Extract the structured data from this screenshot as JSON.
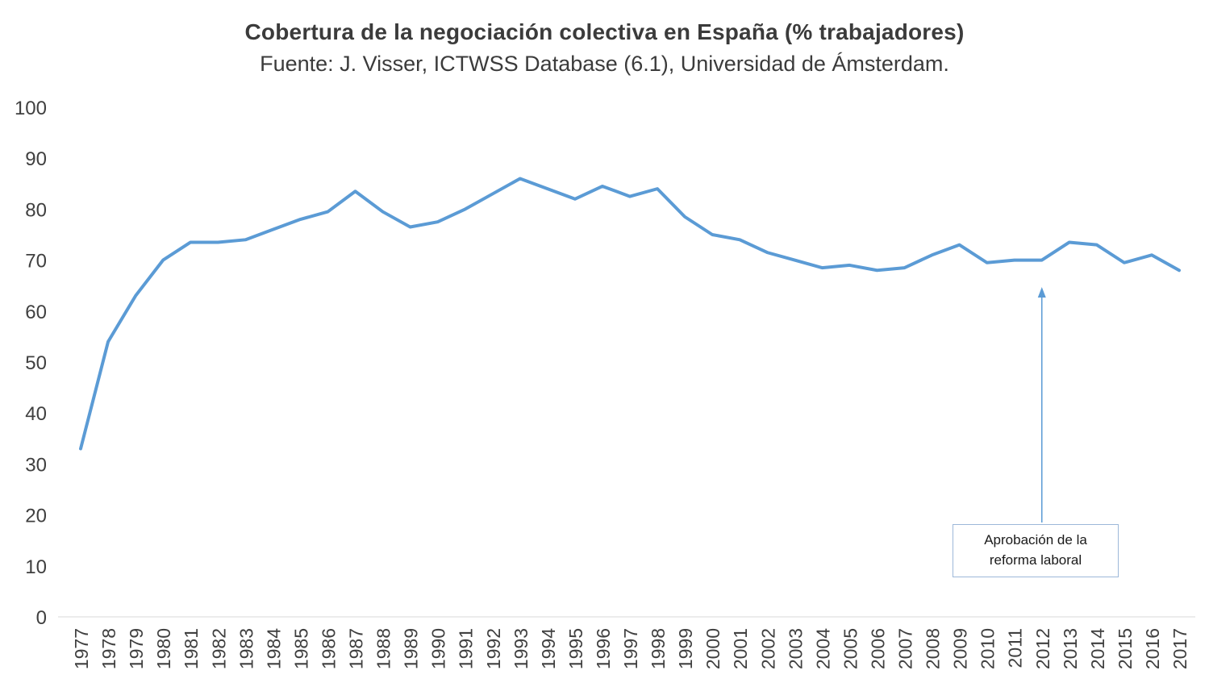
{
  "title": "Cobertura de la negociación colectiva en España (% trabajadores)",
  "subtitle": "Fuente: J. Visser, ICTWSS Database (6.1), Universidad de Ámsterdam.",
  "annotation": {
    "line1": "Aprobación de la",
    "line2": "reforma laboral",
    "year": 2012
  },
  "chart_data": {
    "type": "line",
    "title": "Cobertura de la negociación colectiva en España (% trabajadores)",
    "subtitle": "Fuente: J. Visser, ICTWSS Database (6.1), Universidad de Ámsterdam.",
    "x": [
      1977,
      1978,
      1979,
      1980,
      1981,
      1982,
      1983,
      1984,
      1985,
      1986,
      1987,
      1988,
      1989,
      1990,
      1991,
      1992,
      1993,
      1994,
      1995,
      1996,
      1997,
      1998,
      1999,
      2000,
      2001,
      2002,
      2003,
      2004,
      2005,
      2006,
      2007,
      2008,
      2009,
      2010,
      2011,
      2012,
      2013,
      2014,
      2015,
      2016,
      2017
    ],
    "values": [
      33,
      54,
      63,
      70,
      73.5,
      73.5,
      74,
      76,
      78,
      79.5,
      83.5,
      79.5,
      76.5,
      77.5,
      80,
      83,
      86,
      84,
      82,
      84.5,
      82.5,
      84,
      78.5,
      75,
      74,
      71.5,
      70,
      68.5,
      69,
      68,
      68.5,
      71,
      73,
      69.5,
      70,
      70,
      73.5,
      73,
      69.5,
      71,
      68
    ],
    "ylim": [
      0,
      100
    ],
    "yticks": [
      0,
      10,
      20,
      30,
      40,
      50,
      60,
      70,
      80,
      90,
      100
    ],
    "xlabel": "",
    "ylabel": "",
    "grid": false,
    "legend": "none",
    "line_color": "#5b9bd5",
    "label_color": "#404040",
    "axis_color": "#d9d9d9"
  }
}
